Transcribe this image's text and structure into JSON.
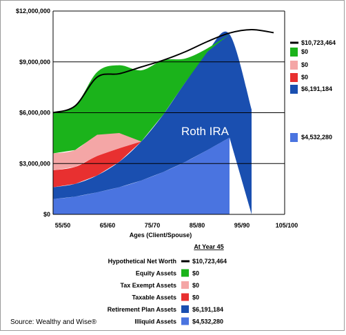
{
  "chart_data": {
    "type": "area",
    "stacked": true,
    "x": [
      "55/50",
      "65/60",
      "75/70",
      "85/80",
      "95/90",
      "105/100"
    ],
    "xlabel": "Ages (Client/Spouse)",
    "ylabel": "",
    "ylim": [
      0,
      12000000
    ],
    "y_ticks": [
      "$0",
      "$3,000,000",
      "$6,000,000",
      "$9,000,000",
      "$12,000,000"
    ],
    "grid": true,
    "series": [
      {
        "name": "Illiquid Assets",
        "color": "#4a74e0",
        "points": [
          [
            0,
            900000
          ],
          [
            1,
            1050000
          ],
          [
            2,
            1300000
          ],
          [
            3,
            1600000
          ],
          [
            4,
            2000000
          ],
          [
            5,
            2500000
          ],
          [
            6,
            3100000
          ],
          [
            7,
            3800000
          ],
          [
            8,
            4532280
          ]
        ]
      },
      {
        "name": "Retirement Plan Assets",
        "color": "#1a4fb0",
        "points": [
          [
            0,
            700000
          ],
          [
            1,
            750000
          ],
          [
            2,
            1000000
          ],
          [
            3,
            1500000
          ],
          [
            4,
            2300000
          ],
          [
            5,
            3400000
          ],
          [
            6,
            4700000
          ],
          [
            7,
            5800000
          ],
          [
            8,
            6100000
          ],
          [
            9,
            6191184
          ]
        ]
      },
      {
        "name": "Taxable Assets",
        "color": "#e83030",
        "points": [
          [
            0,
            1000000
          ],
          [
            1,
            1000000
          ],
          [
            2,
            1150000
          ],
          [
            3,
            800000
          ],
          [
            4,
            0
          ]
        ]
      },
      {
        "name": "Tax Exempt Assets",
        "color": "#f4a6a6",
        "points": [
          [
            0,
            1000000
          ],
          [
            1,
            1000000
          ],
          [
            2,
            1250000
          ],
          [
            3,
            900000
          ],
          [
            4,
            0
          ]
        ]
      },
      {
        "name": "Equity Assets",
        "color": "#1bb31b",
        "points": [
          [
            0,
            2400000
          ],
          [
            1,
            2600000
          ],
          [
            2,
            3700000
          ],
          [
            3,
            4000000
          ],
          [
            4,
            4200000
          ],
          [
            5,
            3200000
          ],
          [
            6,
            1400000
          ],
          [
            7,
            200000
          ],
          [
            8,
            0
          ]
        ]
      }
    ],
    "net_worth_line": {
      "name": "Hypothetical Net Worth",
      "points": [
        [
          0,
          6000000
        ],
        [
          1,
          6400000
        ],
        [
          2,
          8100000
        ],
        [
          3,
          8300000
        ],
        [
          4,
          8700000
        ],
        [
          5,
          9100000
        ],
        [
          6,
          9600000
        ],
        [
          7,
          10200000
        ],
        [
          8,
          10700000
        ],
        [
          9,
          10900000
        ],
        [
          10,
          10723464
        ]
      ]
    },
    "right_labels": [
      {
        "text": "$10,723,464",
        "color": "#000000",
        "kind": "line"
      },
      {
        "text": "$0",
        "color": "#1bb31b",
        "kind": "box"
      },
      {
        "text": "$0",
        "color": "#f4a6a6",
        "kind": "box"
      },
      {
        "text": "$0",
        "color": "#e83030",
        "kind": "box"
      },
      {
        "text": "$6,191,184",
        "color": "#1a4fb0",
        "kind": "box"
      },
      {
        "text": "$4,532,280",
        "color": "#4a74e0",
        "kind": "box"
      }
    ],
    "annotation": "Roth IRA",
    "legend_header": "At Year 45",
    "legend": [
      {
        "name": "Hypothetical Net Worth",
        "value": "$10,723,464",
        "color": "#000000",
        "kind": "line"
      },
      {
        "name": "Equity Assets",
        "value": "$0",
        "color": "#1bb31b",
        "kind": "box"
      },
      {
        "name": "Tax Exempt Assets",
        "value": "$0",
        "color": "#f4a6a6",
        "kind": "box"
      },
      {
        "name": "Taxable Assets",
        "value": "$0",
        "color": "#e83030",
        "kind": "box"
      },
      {
        "name": "Retirement Plan Assets",
        "value": "$6,191,184",
        "color": "#1a4fb0",
        "kind": "box"
      },
      {
        "name": "Illiquid Assets",
        "value": "$4,532,280",
        "color": "#4a74e0",
        "kind": "box"
      }
    ],
    "source": "Source: Wealthy and Wise®"
  }
}
